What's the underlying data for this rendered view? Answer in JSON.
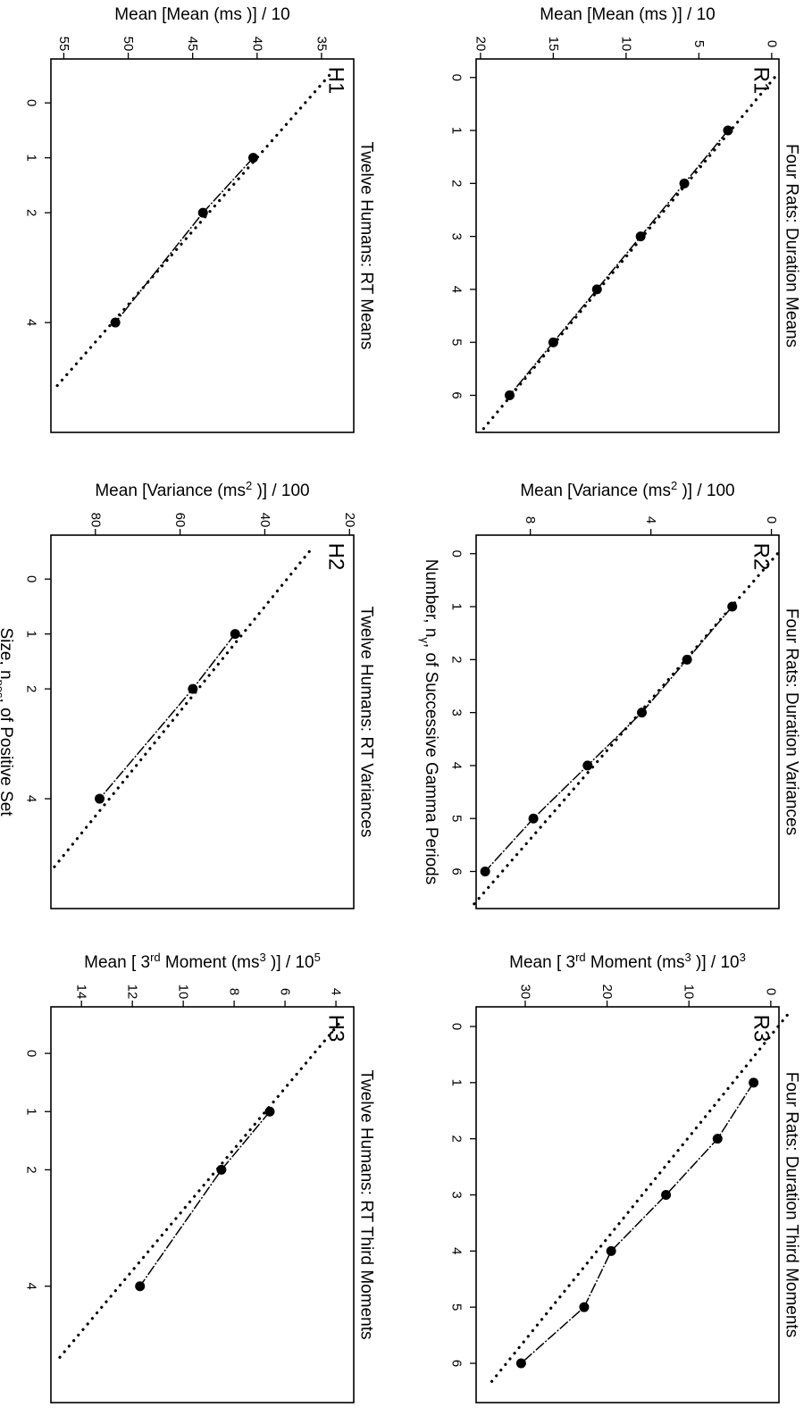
{
  "chart_data": [
    {
      "id": "R1",
      "type": "line",
      "panel_label": "R1",
      "title": "Four Rats: Duration Means",
      "ylabel": "Mean [Mean (ms )] / 10",
      "xlabel": "",
      "xlim": [
        -0.35,
        6.7
      ],
      "ylim": [
        -0.5,
        20.3
      ],
      "xticks": [
        0,
        1,
        2,
        3,
        4,
        5,
        6
      ],
      "yticks": [
        0,
        5,
        10,
        15,
        20
      ],
      "series": [
        {
          "role": "data",
          "x": [
            1,
            2,
            3,
            4,
            5,
            6
          ],
          "y": [
            3.0,
            6.0,
            9.0,
            12.0,
            15.0,
            18.0
          ]
        },
        {
          "role": "fit",
          "x": [
            0,
            6.7
          ],
          "y": [
            -0.2,
            20.0
          ]
        }
      ]
    },
    {
      "id": "R2",
      "type": "line",
      "panel_label": "R2",
      "title": "Four Rats: Duration Variances",
      "ylabel": "Mean [Variance (ms",
      "ylabel_sup": "2",
      "ylabel_end": " )] / 100",
      "xlabel": "Number, n",
      "xlabel_sub": "γ",
      "xlabel_end": ", of Successive Gamma Periods",
      "xlim": [
        -0.35,
        6.7
      ],
      "ylim": [
        -0.25,
        9.8
      ],
      "xticks": [
        0,
        1,
        2,
        3,
        4,
        5,
        6
      ],
      "yticks": [
        0,
        4,
        8
      ],
      "series": [
        {
          "role": "data",
          "x": [
            1,
            2,
            3,
            4,
            5,
            6
          ],
          "y": [
            1.3,
            2.8,
            4.3,
            6.1,
            7.9,
            9.5
          ]
        },
        {
          "role": "fit",
          "x": [
            0,
            6.7
          ],
          "y": [
            -0.2,
            10.0
          ]
        }
      ]
    },
    {
      "id": "R3",
      "type": "line",
      "panel_label": "R3",
      "title": "Four Rats: Duration Third Moments",
      "ylabel": "Mean [ 3",
      "ylabel_sup": "rd",
      "ylabel_mid": " Moment (ms",
      "ylabel_sup2": "3",
      "ylabel_end": " )] / 10",
      "ylabel_sup3": "3",
      "xlabel": "",
      "xlim": [
        -0.35,
        6.7
      ],
      "ylim": [
        -1.0,
        36.0
      ],
      "xticks": [
        0,
        1,
        2,
        3,
        4,
        5,
        6
      ],
      "yticks": [
        0,
        10,
        20,
        30
      ],
      "series": [
        {
          "role": "data",
          "x": [
            1,
            2,
            3,
            4,
            5,
            6
          ],
          "y": [
            2.1,
            6.5,
            12.8,
            19.5,
            22.8,
            30.5
          ]
        },
        {
          "role": "fit",
          "x": [
            -0.2,
            6.4
          ],
          "y": [
            -2.0,
            34.5
          ]
        }
      ]
    },
    {
      "id": "H1",
      "type": "line",
      "panel_label": "H1",
      "title": "Twelve Humans: RT Means",
      "ylabel": "Mean [Mean (ms )] / 10",
      "xlabel": "",
      "xlim": [
        -0.8,
        6.0
      ],
      "ylim": [
        32.5,
        56.0
      ],
      "xticks": [
        0,
        1,
        2,
        4
      ],
      "yticks": [
        35,
        40,
        45,
        50,
        55
      ],
      "series": [
        {
          "role": "data",
          "x": [
            1,
            2,
            4
          ],
          "y": [
            40.3,
            44.2,
            51.0
          ]
        },
        {
          "role": "fit",
          "x": [
            -0.5,
            5.2
          ],
          "y": [
            34.4,
            55.7
          ]
        }
      ]
    },
    {
      "id": "H2",
      "type": "line",
      "panel_label": "H2",
      "title": "Twelve Humans: RT Variances",
      "ylabel": "Mean [Variance (ms",
      "ylabel_sup": "2",
      "ylabel_end": " )] / 100",
      "xlabel": "Size, n",
      "xlabel_sub": "pos",
      "xlabel_end": ", of Positive Set",
      "xlim": [
        -0.8,
        6.0
      ],
      "ylim": [
        19.0,
        90.5
      ],
      "xticks": [
        0,
        1,
        2,
        4
      ],
      "yticks": [
        20,
        40,
        60,
        80
      ],
      "series": [
        {
          "role": "data",
          "x": [
            1,
            2,
            4
          ],
          "y": [
            47.0,
            57.0,
            79.0
          ]
        },
        {
          "role": "fit",
          "x": [
            -0.5,
            5.3
          ],
          "y": [
            29.5,
            90.3
          ]
        }
      ]
    },
    {
      "id": "H3",
      "type": "line",
      "panel_label": "H3",
      "title": "Twelve Humans: RT Third Moments",
      "ylabel": "Mean [ 3",
      "ylabel_sup": "rd",
      "ylabel_mid": " Moment (ms",
      "ylabel_sup2": "3",
      "ylabel_end": " )] / 10",
      "ylabel_sup3": "5",
      "xlabel": "",
      "xlabel_sub": "",
      "xlabel_end": "",
      "xlim": [
        -0.8,
        6.0
      ],
      "ylim": [
        3.3,
        15.2
      ],
      "xticks": [
        0,
        1,
        2,
        4
      ],
      "yticks": [
        4,
        6,
        8,
        10,
        12,
        14
      ],
      "series": [
        {
          "role": "data",
          "x": [
            1,
            2,
            4
          ],
          "y": [
            6.6,
            8.5,
            11.7
          ]
        },
        {
          "role": "fit",
          "x": [
            -0.5,
            5.3
          ],
          "y": [
            3.9,
            15.0
          ]
        }
      ]
    }
  ]
}
